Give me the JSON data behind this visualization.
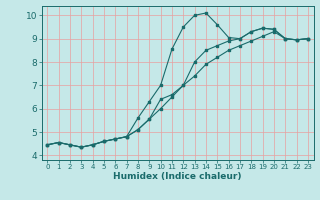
{
  "xlabel": "Humidex (Indice chaleur)",
  "xlim": [
    -0.5,
    23.5
  ],
  "ylim": [
    3.8,
    10.4
  ],
  "xticks": [
    0,
    1,
    2,
    3,
    4,
    5,
    6,
    7,
    8,
    9,
    10,
    11,
    12,
    13,
    14,
    15,
    16,
    17,
    18,
    19,
    20,
    21,
    22,
    23
  ],
  "yticks": [
    4,
    5,
    6,
    7,
    8,
    9,
    10
  ],
  "background_color": "#c5e8e8",
  "grid_color_v": "#e8a0a0",
  "grid_color_h": "#e8a0a0",
  "line_color": "#1a6b6b",
  "line1_x": [
    0,
    1,
    2,
    3,
    4,
    5,
    6,
    7,
    8,
    9,
    10,
    11,
    12,
    13,
    14,
    15,
    16,
    17,
    18,
    19,
    20,
    21,
    22,
    23
  ],
  "line1_y": [
    4.45,
    4.55,
    4.45,
    4.35,
    4.45,
    4.6,
    4.7,
    4.8,
    5.6,
    6.3,
    7.0,
    8.55,
    9.5,
    10.0,
    10.1,
    9.6,
    9.05,
    9.0,
    9.3,
    9.45,
    9.4,
    9.0,
    8.95,
    9.0
  ],
  "line2_x": [
    0,
    1,
    2,
    3,
    4,
    5,
    6,
    7,
    8,
    9,
    10,
    11,
    12,
    13,
    14,
    15,
    16,
    17,
    18,
    19,
    20,
    21,
    22,
    23
  ],
  "line2_y": [
    4.45,
    4.55,
    4.45,
    4.35,
    4.45,
    4.6,
    4.7,
    4.8,
    5.1,
    5.55,
    6.4,
    6.6,
    7.0,
    8.0,
    8.5,
    8.7,
    8.9,
    9.0,
    9.3,
    9.45,
    9.4,
    9.0,
    8.95,
    9.0
  ],
  "line3_x": [
    0,
    1,
    2,
    3,
    4,
    5,
    6,
    7,
    8,
    9,
    10,
    11,
    12,
    13,
    14,
    15,
    16,
    17,
    18,
    19,
    20,
    21,
    22,
    23
  ],
  "line3_y": [
    4.45,
    4.55,
    4.45,
    4.35,
    4.45,
    4.6,
    4.7,
    4.8,
    5.1,
    5.55,
    6.0,
    6.5,
    7.0,
    7.4,
    7.9,
    8.2,
    8.5,
    8.7,
    8.9,
    9.1,
    9.3,
    9.0,
    8.95,
    9.0
  ],
  "xlabel_fontsize": 6.5,
  "xlabel_fontweight": "bold",
  "tick_fontsize_x": 5.0,
  "tick_fontsize_y": 6.5,
  "marker_size": 2.0,
  "line_width": 0.8
}
